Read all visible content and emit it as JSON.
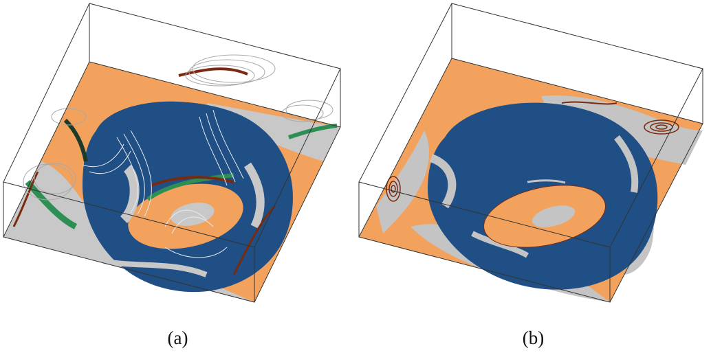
{
  "figure": {
    "panels": [
      {
        "caption": "(a)"
      },
      {
        "caption": "(b)"
      }
    ]
  },
  "colors": {
    "orange": "#f2a25c",
    "blue": "#1f4f84",
    "gray": "#c4c4c4",
    "green": "#2e8f54",
    "dark_red": "#7a2a10",
    "outline": "#333333"
  }
}
